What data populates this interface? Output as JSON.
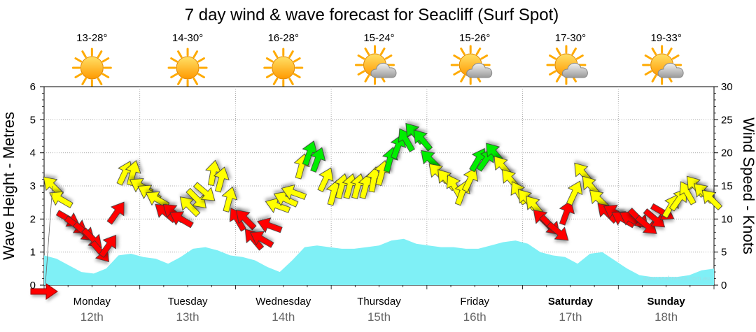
{
  "chart_data": {
    "type": "line",
    "title": "7 day wind & wave forecast for Seacliff  (Surf Spot)",
    "y_left_label": "Wave Height - Metres",
    "y_right_label": "Wind Speed - Knots",
    "y_left_range": [
      0,
      6
    ],
    "y_right_range": [
      0,
      30
    ],
    "y_left_ticks": [
      "0",
      "1",
      "2",
      "3",
      "4",
      "5",
      "6"
    ],
    "y_right_ticks": [
      "0",
      "5",
      "10",
      "15",
      "20",
      "25",
      "30"
    ],
    "watermark": "www.seabreeze.com.au",
    "days": [
      {
        "name": "Monday",
        "date": "12th",
        "temp": "13-28°",
        "icon": "sun-icon",
        "bold": false
      },
      {
        "name": "Tuesday",
        "date": "13th",
        "temp": "14-30°",
        "icon": "sun-icon",
        "bold": false
      },
      {
        "name": "Wednesday",
        "date": "14th",
        "temp": "16-28°",
        "icon": "sun-icon",
        "bold": false
      },
      {
        "name": "Thursday",
        "date": "15th",
        "temp": "15-24°",
        "icon": "partly-cloudy-icon",
        "bold": false
      },
      {
        "name": "Friday",
        "date": "16th",
        "temp": "15-26°",
        "icon": "partly-cloudy-icon",
        "bold": false
      },
      {
        "name": "Saturday",
        "date": "17th",
        "temp": "17-30°",
        "icon": "partly-cloudy-icon",
        "bold": true
      },
      {
        "name": "Sunday",
        "date": "18th",
        "temp": "19-33°",
        "icon": "partly-cloudy-icon",
        "bold": true
      }
    ],
    "wave_height_m": [
      0.9,
      0.8,
      0.6,
      0.4,
      0.35,
      0.5,
      0.9,
      0.95,
      0.85,
      0.8,
      0.65,
      0.85,
      1.1,
      1.15,
      1.05,
      0.9,
      0.85,
      0.75,
      0.55,
      0.4,
      0.75,
      1.15,
      1.2,
      1.15,
      1.1,
      1.1,
      1.15,
      1.2,
      1.35,
      1.4,
      1.25,
      1.2,
      1.15,
      1.15,
      1.1,
      1.1,
      1.2,
      1.3,
      1.35,
      1.25,
      1.0,
      0.9,
      0.85,
      0.65,
      0.95,
      1.0,
      0.75,
      0.5,
      0.3,
      0.25,
      0.25,
      0.25,
      0.3,
      0.45,
      0.5
    ],
    "wind_knots": [
      15,
      13,
      10,
      9,
      8,
      7,
      5,
      6,
      11,
      17,
      17,
      15,
      14,
      13,
      11,
      11,
      10,
      12,
      13,
      14,
      17,
      16,
      13,
      10,
      10,
      7,
      7,
      9,
      12,
      13,
      14,
      18,
      20,
      19,
      16,
      14,
      15,
      15,
      15,
      15,
      16,
      17,
      19,
      21,
      22,
      23,
      22,
      19,
      17,
      16,
      15,
      14,
      16,
      19,
      19,
      20,
      18,
      16,
      14,
      13,
      12,
      10,
      9,
      8,
      11,
      14,
      17,
      15,
      13,
      11,
      11,
      10,
      10,
      10,
      9,
      10,
      11,
      12,
      13,
      14,
      15,
      14,
      13
    ],
    "wind_colour_by_knots": {
      "light_lt_12": "#ff0000",
      "moderate_12_to_18": "#ffff00",
      "fresh_gt_18": "#00ee00"
    },
    "wind_arrow_direction_deg": [
      315,
      300,
      120,
      125,
      130,
      135,
      140,
      35,
      35,
      25,
      15,
      300,
      300,
      300,
      310,
      310,
      300,
      315,
      135,
      130,
      10,
      15,
      15,
      330,
      315,
      320,
      300,
      290,
      290,
      295,
      290,
      15,
      20,
      20,
      25,
      15,
      15,
      15,
      15,
      15,
      10,
      15,
      15,
      20,
      330,
      320,
      320,
      315,
      315,
      320,
      330,
      20,
      25,
      30,
      35,
      320,
      320,
      320,
      330,
      320,
      320,
      315,
      135,
      130,
      20,
      25,
      320,
      320,
      315,
      315,
      300,
      300,
      300,
      135,
      130,
      130,
      120,
      30,
      35,
      330,
      320,
      315,
      315
    ],
    "wind_speed_start_arrow_knots": 0
  }
}
